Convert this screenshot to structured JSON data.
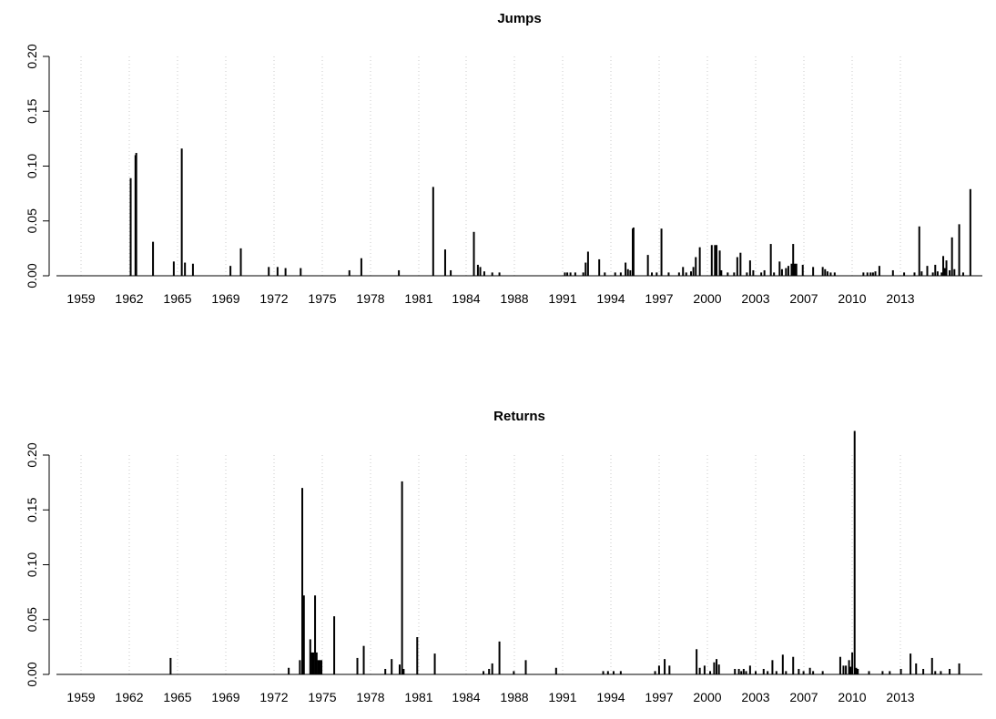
{
  "chart_data": [
    {
      "type": "bar",
      "title": "Jumps",
      "xlabel": "",
      "ylabel": "",
      "ylim": [
        0,
        0.2
      ],
      "xlim": [
        1958.0,
        2016.0
      ],
      "x_ticks": [
        "1959",
        "1962",
        "1965",
        "1969",
        "1972",
        "1975",
        "1978",
        "1981",
        "1984",
        "1988",
        "1991",
        "1994",
        "1997",
        "2000",
        "2003",
        "2007",
        "2010",
        "2013"
      ],
      "y_ticks": [
        "0.00",
        "0.05",
        "0.10",
        "0.15",
        "0.20"
      ],
      "grid": "vertical dotted",
      "bar_color": "#000000",
      "x": [
        1962.65,
        1962.95,
        1963.0,
        1964.05,
        1965.35,
        1965.85,
        1966.05,
        1966.55,
        1968.9,
        1969.55,
        1971.3,
        1971.85,
        1972.35,
        1973.3,
        1976.35,
        1977.1,
        1979.45,
        1981.6,
        1982.35,
        1982.7,
        1984.15,
        1984.4,
        1984.55,
        1984.8,
        1985.3,
        1985.75,
        1989.85,
        1990.0,
        1990.2,
        1990.5,
        1991.0,
        1991.15,
        1991.3,
        1992.0,
        1992.35,
        1993.0,
        1993.35,
        1993.65,
        1993.8,
        1993.95,
        1994.1,
        1994.15,
        1995.05,
        1995.3,
        1995.6,
        1995.9,
        1996.35,
        1997.0,
        1997.25,
        1997.45,
        1997.75,
        1997.9,
        1998.05,
        1998.3,
        1999.05,
        1999.25,
        1999.35,
        1999.55,
        1999.65,
        2000.05,
        2000.45,
        2000.65,
        2000.85,
        2001.25,
        2001.45,
        2001.65,
        2002.15,
        2002.35,
        2002.75,
        2002.95,
        2003.3,
        2003.45,
        2003.7,
        2003.85,
        2004.05,
        2004.15,
        2004.25,
        2004.35,
        2004.75,
        2005.4,
        2006.0,
        2006.15,
        2006.3,
        2006.5,
        2006.75,
        2008.55,
        2008.8,
        2009.0,
        2009.15,
        2009.3,
        2009.55,
        2010.4,
        2011.1,
        2011.75,
        2012.05,
        2012.2,
        2012.55,
        2012.9,
        2013.05,
        2013.2,
        2013.45,
        2013.55,
        2013.65,
        2013.75,
        2013.95,
        2014.1,
        2014.25,
        2014.55,
        2014.8,
        2015.25
      ],
      "values": [
        0.089,
        0.11,
        0.112,
        0.031,
        0.013,
        0.116,
        0.012,
        0.011,
        0.009,
        0.025,
        0.008,
        0.008,
        0.007,
        0.007,
        0.005,
        0.016,
        0.005,
        0.081,
        0.024,
        0.005,
        0.04,
        0.01,
        0.008,
        0.004,
        0.003,
        0.003,
        0.003,
        0.003,
        0.003,
        0.003,
        0.003,
        0.012,
        0.022,
        0.015,
        0.003,
        0.003,
        0.003,
        0.012,
        0.006,
        0.005,
        0.043,
        0.044,
        0.019,
        0.003,
        0.003,
        0.043,
        0.003,
        0.003,
        0.008,
        0.003,
        0.004,
        0.008,
        0.017,
        0.026,
        0.028,
        0.028,
        0.028,
        0.023,
        0.005,
        0.003,
        0.003,
        0.017,
        0.021,
        0.003,
        0.014,
        0.005,
        0.003,
        0.005,
        0.029,
        0.003,
        0.013,
        0.006,
        0.007,
        0.009,
        0.011,
        0.029,
        0.011,
        0.011,
        0.01,
        0.008,
        0.008,
        0.006,
        0.004,
        0.003,
        0.003,
        0.003,
        0.003,
        0.003,
        0.003,
        0.004,
        0.009,
        0.005,
        0.003,
        0.003,
        0.045,
        0.004,
        0.009,
        0.003,
        0.01,
        0.004,
        0.003,
        0.018,
        0.007,
        0.014,
        0.005,
        0.035,
        0.006,
        0.047,
        0.003,
        0.079
      ]
    },
    {
      "type": "bar",
      "title": "Returns",
      "xlabel": "",
      "ylabel": "",
      "ylim": [
        0,
        0.2
      ],
      "xlim": [
        1958.0,
        2016.0
      ],
      "x_ticks": [
        "1959",
        "1962",
        "1965",
        "1969",
        "1972",
        "1975",
        "1978",
        "1981",
        "1984",
        "1988",
        "1991",
        "1994",
        "1997",
        "2000",
        "2003",
        "2007",
        "2010",
        "2013"
      ],
      "y_ticks": [
        "0.00",
        "0.05",
        "0.10",
        "0.15",
        "0.20"
      ],
      "grid": "vertical dotted",
      "bar_color": "#000000",
      "x": [
        1965.15,
        1972.55,
        1973.25,
        1973.4,
        1973.5,
        1973.9,
        1974.0,
        1974.1,
        1974.2,
        1974.3,
        1974.4,
        1974.5,
        1974.6,
        1975.4,
        1976.85,
        1977.25,
        1978.6,
        1979.0,
        1979.5,
        1979.65,
        1979.75,
        1980.6,
        1981.7,
        1984.75,
        1985.1,
        1985.3,
        1985.75,
        1986.65,
        1987.4,
        1989.3,
        1992.25,
        1992.55,
        1992.9,
        1993.35,
        1995.5,
        1995.75,
        1996.1,
        1996.4,
        1998.1,
        1998.3,
        1998.6,
        1998.95,
        1999.2,
        1999.35,
        1999.5,
        2000.5,
        2000.75,
        2000.9,
        2001.05,
        2001.2,
        2001.45,
        2001.8,
        2002.3,
        2002.55,
        2002.85,
        2003.1,
        2003.5,
        2003.7,
        2004.15,
        2004.5,
        2004.8,
        2005.2,
        2005.4,
        2006.0,
        2007.1,
        2007.3,
        2007.45,
        2007.65,
        2007.75,
        2007.85,
        2008.0,
        2008.1,
        2008.2,
        2008.9,
        2009.75,
        2010.2,
        2010.9,
        2011.5,
        2011.85,
        2012.3,
        2012.85,
        2013.05,
        2013.4,
        2013.95,
        2014.55
      ],
      "values": [
        0.015,
        0.006,
        0.013,
        0.17,
        0.072,
        0.032,
        0.02,
        0.02,
        0.072,
        0.02,
        0.013,
        0.013,
        0.013,
        0.053,
        0.015,
        0.026,
        0.005,
        0.014,
        0.009,
        0.176,
        0.005,
        0.034,
        0.019,
        0.003,
        0.005,
        0.01,
        0.03,
        0.003,
        0.013,
        0.006,
        0.003,
        0.003,
        0.003,
        0.003,
        0.003,
        0.008,
        0.014,
        0.008,
        0.023,
        0.006,
        0.008,
        0.003,
        0.011,
        0.014,
        0.009,
        0.005,
        0.005,
        0.003,
        0.005,
        0.003,
        0.008,
        0.003,
        0.005,
        0.003,
        0.013,
        0.003,
        0.018,
        0.003,
        0.016,
        0.005,
        0.003,
        0.006,
        0.003,
        0.003,
        0.016,
        0.008,
        0.008,
        0.013,
        0.007,
        0.02,
        0.222,
        0.006,
        0.005,
        0.003,
        0.003,
        0.003,
        0.005,
        0.019,
        0.01,
        0.005,
        0.015,
        0.003,
        0.003,
        0.005,
        0.01
      ]
    }
  ]
}
